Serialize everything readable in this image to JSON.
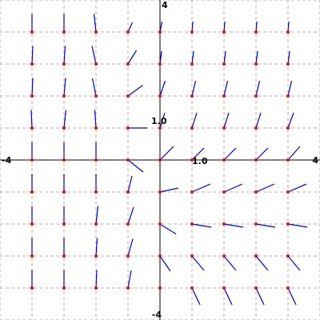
{
  "chart_data": {
    "type": "vector_field",
    "xlim": [
      -4,
      4
    ],
    "ylim": [
      -4,
      4
    ],
    "grid": true,
    "grid_step": 0.8,
    "tick_labels": {
      "x_min": "-4",
      "x_max": "4",
      "y_max": "4",
      "y_min": "-4",
      "x_unit": "1.0",
      "y_unit": "1.0"
    },
    "colors": {
      "background": "#ffffff",
      "grid": "#b0b0b0",
      "axes": "#000000",
      "vector": "#0000cc",
      "point": "#ff0000"
    },
    "vectors": [
      {
        "x": -3.2,
        "y": 3.2,
        "dx": 0.0,
        "dy": 0.45
      },
      {
        "x": -2.4,
        "y": 3.2,
        "dx": 0.0,
        "dy": 0.45
      },
      {
        "x": -1.6,
        "y": 3.2,
        "dx": -0.05,
        "dy": 0.45
      },
      {
        "x": -0.8,
        "y": 3.2,
        "dx": 0.11,
        "dy": 0.24
      },
      {
        "x": 0.0,
        "y": 3.2,
        "dx": 0.05,
        "dy": 0.26
      },
      {
        "x": 0.8,
        "y": 3.2,
        "dx": 0.02,
        "dy": 0.26
      },
      {
        "x": 1.6,
        "y": 3.2,
        "dx": 0.02,
        "dy": 0.26
      },
      {
        "x": 2.4,
        "y": 3.2,
        "dx": 0.02,
        "dy": 0.26
      },
      {
        "x": 3.2,
        "y": 3.2,
        "dx": 0.02,
        "dy": 0.26
      },
      {
        "x": -3.2,
        "y": 2.4,
        "dx": 0.02,
        "dy": 0.45
      },
      {
        "x": -2.4,
        "y": 2.4,
        "dx": 0.03,
        "dy": 0.45
      },
      {
        "x": -1.6,
        "y": 2.4,
        "dx": -0.1,
        "dy": 0.45
      },
      {
        "x": -0.8,
        "y": 2.4,
        "dx": 0.21,
        "dy": 0.34
      },
      {
        "x": 0.0,
        "y": 2.4,
        "dx": 0.04,
        "dy": 0.32
      },
      {
        "x": 0.8,
        "y": 2.4,
        "dx": 0.04,
        "dy": 0.32
      },
      {
        "x": 1.6,
        "y": 2.4,
        "dx": 0.04,
        "dy": 0.32
      },
      {
        "x": 2.4,
        "y": 2.4,
        "dx": 0.04,
        "dy": 0.32
      },
      {
        "x": 3.2,
        "y": 2.4,
        "dx": 0.04,
        "dy": 0.32
      },
      {
        "x": -3.2,
        "y": 1.6,
        "dx": 0.02,
        "dy": 0.45
      },
      {
        "x": -2.4,
        "y": 1.6,
        "dx": 0.04,
        "dy": 0.45
      },
      {
        "x": -1.6,
        "y": 1.6,
        "dx": -0.09,
        "dy": 0.44
      },
      {
        "x": -0.8,
        "y": 1.6,
        "dx": 0.37,
        "dy": 0.27
      },
      {
        "x": 0.0,
        "y": 1.6,
        "dx": 0.13,
        "dy": 0.38
      },
      {
        "x": 0.8,
        "y": 1.6,
        "dx": 0.09,
        "dy": 0.38
      },
      {
        "x": 1.6,
        "y": 1.6,
        "dx": 0.09,
        "dy": 0.38
      },
      {
        "x": 2.4,
        "y": 1.6,
        "dx": 0.09,
        "dy": 0.38
      },
      {
        "x": 3.2,
        "y": 1.6,
        "dx": 0.09,
        "dy": 0.38
      },
      {
        "x": -3.2,
        "y": 0.8,
        "dx": -0.02,
        "dy": 0.45
      },
      {
        "x": -2.4,
        "y": 0.8,
        "dx": 0.05,
        "dy": 0.45
      },
      {
        "x": -1.6,
        "y": 0.8,
        "dx": -0.03,
        "dy": 0.45
      },
      {
        "x": -0.8,
        "y": 0.8,
        "dx": 0.48,
        "dy": 0.0
      },
      {
        "x": 0.0,
        "y": 0.8,
        "dx": 0.12,
        "dy": 0.38
      },
      {
        "x": 0.8,
        "y": 0.8,
        "dx": 0.12,
        "dy": 0.38
      },
      {
        "x": 1.6,
        "y": 0.8,
        "dx": 0.12,
        "dy": 0.38
      },
      {
        "x": 2.4,
        "y": 0.8,
        "dx": 0.12,
        "dy": 0.38
      },
      {
        "x": 3.2,
        "y": 0.8,
        "dx": 0.14,
        "dy": 0.38
      },
      {
        "x": -3.2,
        "y": 0.0,
        "dx": 0.0,
        "dy": 0.45
      },
      {
        "x": -2.4,
        "y": 0.0,
        "dx": 0.0,
        "dy": 0.45
      },
      {
        "x": -1.6,
        "y": 0.0,
        "dx": 0.0,
        "dy": 0.45
      },
      {
        "x": -0.8,
        "y": 0.0,
        "dx": 0.38,
        "dy": -0.3
      },
      {
        "x": 0.0,
        "y": 0.0,
        "dx": 0.34,
        "dy": 0.34
      },
      {
        "x": 0.8,
        "y": 0.0,
        "dx": 0.3,
        "dy": 0.3
      },
      {
        "x": 1.6,
        "y": 0.0,
        "dx": 0.3,
        "dy": 0.3
      },
      {
        "x": 2.4,
        "y": 0.0,
        "dx": 0.3,
        "dy": 0.3
      },
      {
        "x": 3.2,
        "y": 0.0,
        "dx": 0.3,
        "dy": 0.34
      },
      {
        "x": -3.2,
        "y": -0.8,
        "dx": 0.0,
        "dy": 0.45
      },
      {
        "x": -2.4,
        "y": -0.8,
        "dx": 0.0,
        "dy": 0.45
      },
      {
        "x": -1.6,
        "y": -0.8,
        "dx": 0.0,
        "dy": 0.45
      },
      {
        "x": -0.8,
        "y": -0.8,
        "dx": 0.1,
        "dy": 0.4
      },
      {
        "x": 0.0,
        "y": -0.8,
        "dx": 0.46,
        "dy": 0.1
      },
      {
        "x": 0.8,
        "y": -0.8,
        "dx": 0.46,
        "dy": 0.2
      },
      {
        "x": 1.6,
        "y": -0.8,
        "dx": 0.46,
        "dy": 0.2
      },
      {
        "x": 2.4,
        "y": -0.8,
        "dx": 0.46,
        "dy": 0.2
      },
      {
        "x": 3.2,
        "y": -0.8,
        "dx": 0.46,
        "dy": 0.2
      },
      {
        "x": -3.2,
        "y": -1.6,
        "dx": 0.0,
        "dy": 0.45
      },
      {
        "x": -2.4,
        "y": -1.6,
        "dx": 0.0,
        "dy": 0.45
      },
      {
        "x": -1.6,
        "y": -1.6,
        "dx": 0.05,
        "dy": 0.45
      },
      {
        "x": -0.8,
        "y": -1.6,
        "dx": 0.14,
        "dy": 0.42
      },
      {
        "x": 0.0,
        "y": -1.6,
        "dx": 0.4,
        "dy": -0.25
      },
      {
        "x": 0.8,
        "y": -1.6,
        "dx": 0.48,
        "dy": -0.08
      },
      {
        "x": 1.6,
        "y": -1.6,
        "dx": 0.48,
        "dy": -0.08
      },
      {
        "x": 2.4,
        "y": -1.6,
        "dx": 0.48,
        "dy": -0.08
      },
      {
        "x": 3.2,
        "y": -1.6,
        "dx": 0.48,
        "dy": -0.08
      },
      {
        "x": -3.2,
        "y": -2.4,
        "dx": 0.0,
        "dy": 0.45
      },
      {
        "x": -2.4,
        "y": -2.4,
        "dx": 0.0,
        "dy": 0.45
      },
      {
        "x": -1.6,
        "y": -2.4,
        "dx": 0.03,
        "dy": 0.45
      },
      {
        "x": -0.8,
        "y": -2.4,
        "dx": 0.12,
        "dy": 0.43
      },
      {
        "x": 0.0,
        "y": -2.4,
        "dx": 0.26,
        "dy": -0.38
      },
      {
        "x": 0.8,
        "y": -2.4,
        "dx": 0.3,
        "dy": -0.36
      },
      {
        "x": 1.6,
        "y": -2.4,
        "dx": 0.3,
        "dy": -0.36
      },
      {
        "x": 2.4,
        "y": -2.4,
        "dx": 0.3,
        "dy": -0.36
      },
      {
        "x": 3.2,
        "y": -2.4,
        "dx": 0.3,
        "dy": -0.36
      },
      {
        "x": -3.2,
        "y": -3.2,
        "dx": 0.0,
        "dy": 0.45
      },
      {
        "x": -2.4,
        "y": -3.2,
        "dx": 0.0,
        "dy": 0.45
      },
      {
        "x": -1.6,
        "y": -3.2,
        "dx": 0.02,
        "dy": 0.45
      },
      {
        "x": -0.8,
        "y": -3.2,
        "dx": 0.08,
        "dy": 0.44
      },
      {
        "x": 0.0,
        "y": -3.2,
        "dx": 0.0,
        "dy": 0.0
      },
      {
        "x": 0.8,
        "y": -3.2,
        "dx": 0.2,
        "dy": -0.42
      },
      {
        "x": 1.6,
        "y": -3.2,
        "dx": 0.2,
        "dy": -0.42
      },
      {
        "x": 2.4,
        "y": -3.2,
        "dx": 0.2,
        "dy": -0.42
      },
      {
        "x": 3.2,
        "y": -3.2,
        "dx": 0.2,
        "dy": -0.42
      }
    ]
  }
}
